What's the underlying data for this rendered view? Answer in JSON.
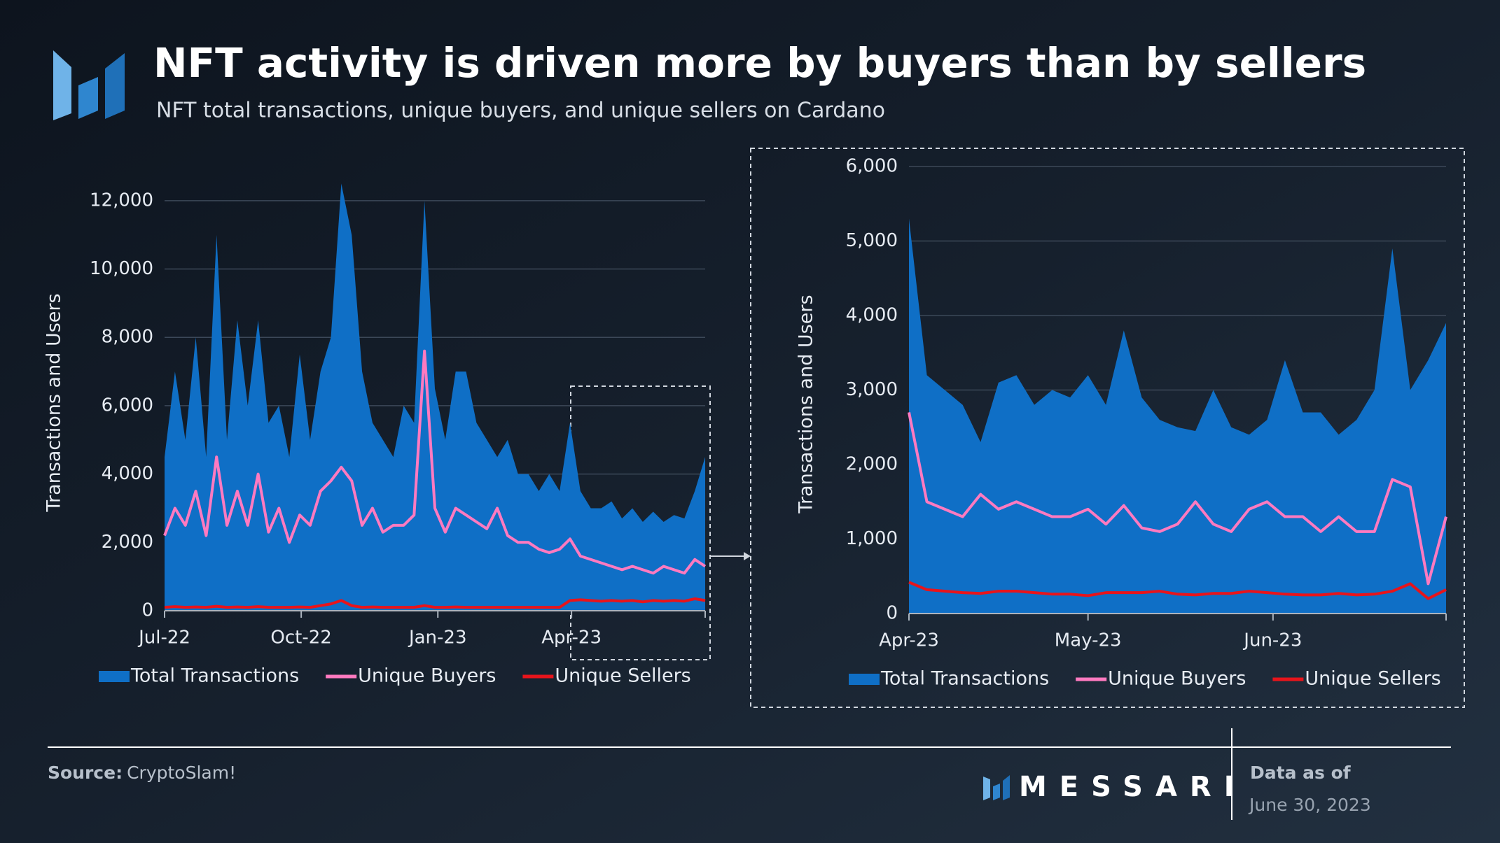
{
  "header": {
    "title": "NFT activity is driven more by buyers than by sellers",
    "subtitle": "NFT total transactions, unique buyers, and unique sellers on Cardano"
  },
  "chart_data": [
    {
      "type": "area",
      "ylabel": "Transactions and Users",
      "xlim": [
        0,
        364
      ],
      "xticks": [
        {
          "value": 0,
          "label": "Jul-22"
        },
        {
          "value": 92,
          "label": "Oct-22"
        },
        {
          "value": 184,
          "label": "Jan-23"
        },
        {
          "value": 274,
          "label": "Apr-23"
        }
      ],
      "ylim": [
        0,
        13000
      ],
      "yticks": [
        0,
        {
          "value": 2000,
          "label": "2,000"
        },
        {
          "value": 4000,
          "label": "4,000"
        },
        {
          "value": 6000,
          "label": "6,000"
        },
        {
          "value": 8000,
          "label": "8,000"
        },
        {
          "value": 10000,
          "label": "10,000"
        },
        {
          "value": 12000,
          "label": "12,000"
        }
      ],
      "grid": true,
      "x": [
        0,
        7,
        14,
        21,
        28,
        35,
        42,
        49,
        56,
        63,
        70,
        77,
        84,
        91,
        98,
        105,
        112,
        119,
        126,
        133,
        140,
        147,
        154,
        161,
        168,
        175,
        182,
        189,
        196,
        203,
        210,
        217,
        224,
        231,
        238,
        245,
        252,
        259,
        266,
        273,
        280,
        287,
        294,
        301,
        308,
        315,
        322,
        329,
        336,
        343,
        350,
        357,
        364
      ],
      "series": [
        {
          "name": "Total Transactions",
          "kind": "area",
          "color": "#0f6fc6",
          "values": [
            4500,
            7000,
            5000,
            8000,
            4500,
            11000,
            5000,
            8500,
            6000,
            8500,
            5500,
            6000,
            4500,
            7500,
            5000,
            7000,
            8000,
            12500,
            11000,
            7000,
            5500,
            5000,
            4500,
            6000,
            5500,
            12000,
            6500,
            5000,
            7000,
            7000,
            5500,
            5000,
            4500,
            5000,
            4000,
            4000,
            3500,
            4000,
            3500,
            5500,
            3500,
            3000,
            3000,
            3200,
            2700,
            3000,
            2600,
            2900,
            2600,
            2800,
            2700,
            3500,
            4500
          ]
        },
        {
          "name": "Unique Buyers",
          "kind": "line",
          "color": "#ff7ac0",
          "values": [
            2200,
            3000,
            2500,
            3500,
            2200,
            4500,
            2500,
            3500,
            2500,
            4000,
            2300,
            3000,
            2000,
            2800,
            2500,
            3500,
            3800,
            4200,
            3800,
            2500,
            3000,
            2300,
            2500,
            2500,
            2800,
            7600,
            3000,
            2300,
            3000,
            2800,
            2600,
            2400,
            3000,
            2200,
            2000,
            2000,
            1800,
            1700,
            1800,
            2100,
            1600,
            1500,
            1400,
            1300,
            1200,
            1300,
            1200,
            1100,
            1300,
            1200,
            1100,
            1500,
            1300
          ]
        },
        {
          "name": "Unique Sellers",
          "kind": "line",
          "color": "#e8141b",
          "values": [
            100,
            120,
            100,
            110,
            100,
            130,
            100,
            110,
            100,
            120,
            100,
            100,
            100,
            110,
            100,
            150,
            200,
            300,
            150,
            100,
            110,
            100,
            100,
            100,
            100,
            150,
            100,
            100,
            110,
            100,
            100,
            100,
            100,
            100,
            100,
            100,
            100,
            100,
            100,
            300,
            320,
            300,
            280,
            300,
            280,
            300,
            260,
            300,
            280,
            300,
            280,
            350,
            300
          ]
        }
      ]
    },
    {
      "type": "area",
      "ylabel": "Transactions and Users",
      "xlim": [
        0,
        90
      ],
      "xticks": [
        {
          "value": 0,
          "label": "Apr-23"
        },
        {
          "value": 30,
          "label": "May-23"
        },
        {
          "value": 61,
          "label": "Jun-23"
        }
      ],
      "ylim": [
        0,
        6000
      ],
      "yticks": [
        0,
        {
          "value": 1000,
          "label": "1,000"
        },
        {
          "value": 2000,
          "label": "2,000"
        },
        {
          "value": 3000,
          "label": "3,000"
        },
        {
          "value": 4000,
          "label": "4,000"
        },
        {
          "value": 5000,
          "label": "5,000"
        },
        {
          "value": 6000,
          "label": "6,000"
        }
      ],
      "grid": true,
      "x": [
        0,
        3,
        6,
        9,
        12,
        15,
        18,
        21,
        24,
        27,
        30,
        33,
        36,
        39,
        42,
        45,
        48,
        51,
        54,
        57,
        60,
        63,
        66,
        69,
        72,
        75,
        78,
        81,
        84,
        87,
        90
      ],
      "series": [
        {
          "name": "Total Transactions",
          "kind": "area",
          "color": "#0f6fc6",
          "values": [
            5300,
            3200,
            3000,
            2800,
            2300,
            3100,
            3200,
            2800,
            3000,
            2900,
            3200,
            2800,
            3800,
            2900,
            2600,
            2500,
            2450,
            3000,
            2500,
            2400,
            2600,
            3400,
            2700,
            2700,
            2400,
            2600,
            3000,
            4900,
            3000,
            3400,
            3900
          ]
        },
        {
          "name": "Unique Buyers",
          "kind": "line",
          "color": "#ff7ac0",
          "values": [
            2700,
            1500,
            1400,
            1300,
            1600,
            1400,
            1500,
            1400,
            1300,
            1300,
            1400,
            1200,
            1450,
            1150,
            1100,
            1200,
            1500,
            1200,
            1100,
            1400,
            1500,
            1300,
            1300,
            1100,
            1300,
            1100,
            1100,
            1800,
            1700,
            400,
            1300
          ]
        },
        {
          "name": "Unique Sellers",
          "kind": "line",
          "color": "#e8141b",
          "values": [
            420,
            320,
            300,
            280,
            270,
            300,
            300,
            280,
            260,
            260,
            240,
            280,
            280,
            280,
            300,
            260,
            250,
            270,
            270,
            300,
            280,
            260,
            250,
            250,
            270,
            250,
            260,
            300,
            400,
            200,
            320
          ]
        }
      ]
    }
  ],
  "footer": {
    "source_label": "Source:",
    "source": "CryptoSlam!",
    "brand": "MESSARI",
    "data_as_of_label": "Data as of",
    "data_as_of_date": "June 30, 2023"
  }
}
